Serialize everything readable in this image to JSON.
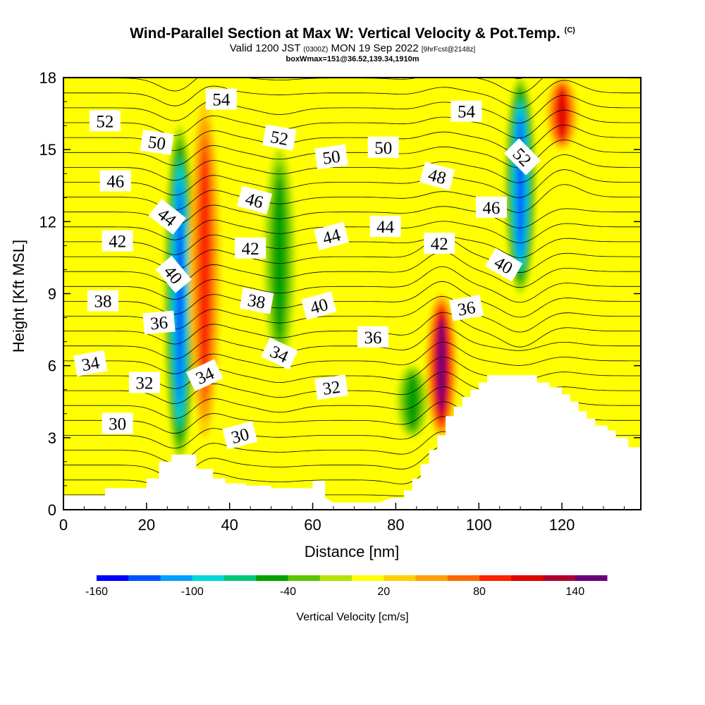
{
  "header": {
    "title": "Wind-Parallel Section at Max W: Vertical Velocity & Pot.Temp.",
    "copyright": "(C)",
    "valid_main": "Valid 1200 JST",
    "valid_utc": "(0300Z)",
    "valid_date": "MON 19 Sep 2022",
    "forecast": "[9hrFcst@2148z]",
    "box_info": "boxWmax=151@36.52,139.34,1910m"
  },
  "chart_data": {
    "type": "heatmap",
    "xlabel": "Distance [nm]",
    "ylabel": "Height [Kft MSL]",
    "xlim": [
      0,
      139
    ],
    "ylim": [
      0,
      18
    ],
    "x_ticks": [
      0,
      20,
      40,
      60,
      80,
      100,
      120
    ],
    "y_ticks": [
      0,
      3,
      6,
      9,
      12,
      15,
      18
    ],
    "colorbar": {
      "title": "Vertical Velocity [cm/s]",
      "tick_labels": [
        "-160",
        "-100",
        "-40",
        "20",
        "80",
        "140"
      ],
      "levels": [
        -160,
        -140,
        -120,
        -100,
        -80,
        -60,
        -40,
        -20,
        0,
        20,
        40,
        60,
        80,
        100,
        120,
        140,
        160
      ],
      "colors": [
        "#0000ff",
        "#0050ff",
        "#00a0ff",
        "#00d8d8",
        "#00c878",
        "#00a000",
        "#5cc400",
        "#b4e400",
        "#ffff00",
        "#ffd000",
        "#ffa000",
        "#ff6800",
        "#ff2000",
        "#e00000",
        "#b00030",
        "#6a007a"
      ]
    },
    "vertical_velocity_features": [
      {
        "x": 28,
        "zmin": 2,
        "zmax": 16,
        "w": -120,
        "kind": "downdraft"
      },
      {
        "x": 34,
        "zmin": 3,
        "zmax": 17,
        "w": 80,
        "kind": "updraft"
      },
      {
        "x": 52,
        "zmin": 6,
        "zmax": 15,
        "w": -50,
        "kind": "downdraft"
      },
      {
        "x": 91,
        "zmin": 3,
        "zmax": 9,
        "w": 151,
        "kind": "updraft"
      },
      {
        "x": 84,
        "zmin": 3,
        "zmax": 6,
        "w": -50,
        "kind": "downdraft"
      },
      {
        "x": 110,
        "zmin": 9,
        "zmax": 18,
        "w": -120,
        "kind": "downdraft"
      },
      {
        "x": 120,
        "zmin": 15,
        "zmax": 18,
        "w": 100,
        "kind": "updraft"
      }
    ],
    "theta_contour_labels": [
      {
        "text": "52",
        "x": 10,
        "z": 16.2,
        "angle": 0
      },
      {
        "text": "50",
        "x": 22.5,
        "z": 15.3,
        "angle": 8
      },
      {
        "text": "46",
        "x": 12.5,
        "z": 13.7,
        "angle": 0
      },
      {
        "text": "44",
        "x": 25,
        "z": 12.2,
        "angle": 38
      },
      {
        "text": "42",
        "x": 13,
        "z": 11.2,
        "angle": 0
      },
      {
        "text": "40",
        "x": 26.5,
        "z": 9.8,
        "angle": 50
      },
      {
        "text": "38",
        "x": 9.5,
        "z": 8.7,
        "angle": 0
      },
      {
        "text": "36",
        "x": 23,
        "z": 7.8,
        "angle": -5
      },
      {
        "text": "34",
        "x": 6.5,
        "z": 6.1,
        "angle": -10
      },
      {
        "text": "32",
        "x": 19.5,
        "z": 5.3,
        "angle": 0
      },
      {
        "text": "30",
        "x": 13,
        "z": 3.6,
        "angle": 0
      },
      {
        "text": "54",
        "x": 38,
        "z": 17.1,
        "angle": 0
      },
      {
        "text": "52",
        "x": 52,
        "z": 15.5,
        "angle": 10
      },
      {
        "text": "46",
        "x": 46,
        "z": 12.9,
        "angle": 15
      },
      {
        "text": "42",
        "x": 45,
        "z": 10.9,
        "angle": 0
      },
      {
        "text": "38",
        "x": 46.5,
        "z": 8.7,
        "angle": 10
      },
      {
        "text": "34",
        "x": 52,
        "z": 6.5,
        "angle": 25
      },
      {
        "text": "34",
        "x": 34,
        "z": 5.6,
        "angle": -25
      },
      {
        "text": "30",
        "x": 42.5,
        "z": 3.1,
        "angle": -15
      },
      {
        "text": "50",
        "x": 64.5,
        "z": 14.7,
        "angle": -8
      },
      {
        "text": "50",
        "x": 77,
        "z": 15.1,
        "angle": 0
      },
      {
        "text": "44",
        "x": 64.5,
        "z": 11.4,
        "angle": -15
      },
      {
        "text": "44",
        "x": 77.5,
        "z": 11.8,
        "angle": 0
      },
      {
        "text": "40",
        "x": 61.5,
        "z": 8.5,
        "angle": -15
      },
      {
        "text": "36",
        "x": 74.5,
        "z": 7.2,
        "angle": 0
      },
      {
        "text": "32",
        "x": 64.5,
        "z": 5.1,
        "angle": -8
      },
      {
        "text": "54",
        "x": 97,
        "z": 16.6,
        "angle": 0
      },
      {
        "text": "48",
        "x": 90,
        "z": 13.9,
        "angle": 15
      },
      {
        "text": "42",
        "x": 90.5,
        "z": 11.1,
        "angle": 0
      },
      {
        "text": "36",
        "x": 97,
        "z": 8.4,
        "angle": -10
      },
      {
        "text": "52",
        "x": 110.5,
        "z": 14.7,
        "angle": 45
      },
      {
        "text": "46",
        "x": 103,
        "z": 12.6,
        "angle": 0
      },
      {
        "text": "40",
        "x": 106,
        "z": 10.2,
        "angle": 30
      }
    ],
    "terrain": [
      [
        0,
        0.6
      ],
      [
        10,
        0.6
      ],
      [
        10,
        0.9
      ],
      [
        20,
        0.9
      ],
      [
        20,
        1.3
      ],
      [
        23,
        1.3
      ],
      [
        23,
        2
      ],
      [
        26,
        2
      ],
      [
        26,
        2.3
      ],
      [
        32,
        2.3
      ],
      [
        32,
        1.7
      ],
      [
        36,
        1.7
      ],
      [
        36,
        1.3
      ],
      [
        39,
        1.3
      ],
      [
        39,
        1.1
      ],
      [
        44,
        1.1
      ],
      [
        44,
        1
      ],
      [
        50,
        1
      ],
      [
        50,
        0.9
      ],
      [
        60,
        0.9
      ],
      [
        60,
        1.2
      ],
      [
        63,
        1.2
      ],
      [
        63,
        0.5
      ],
      [
        65,
        0.3
      ],
      [
        73,
        0.3
      ],
      [
        76,
        0.3
      ],
      [
        79,
        0.5
      ],
      [
        82,
        0.5
      ],
      [
        82,
        0.8
      ],
      [
        84,
        0.8
      ],
      [
        84,
        1.3
      ],
      [
        86,
        1.3
      ],
      [
        86,
        1.9
      ],
      [
        88,
        1.9
      ],
      [
        88,
        2.5
      ],
      [
        90,
        2.5
      ],
      [
        90,
        3.1
      ],
      [
        92,
        3.1
      ],
      [
        92,
        3.9
      ],
      [
        94,
        3.9
      ],
      [
        94,
        4.3
      ],
      [
        96,
        4.3
      ],
      [
        96,
        4.7
      ],
      [
        98,
        4.7
      ],
      [
        98,
        5
      ],
      [
        100,
        5
      ],
      [
        100,
        5.3
      ],
      [
        102,
        5.3
      ],
      [
        102,
        5.6
      ],
      [
        110,
        5.6
      ],
      [
        114,
        5.6
      ],
      [
        114,
        5.3
      ],
      [
        117,
        5.3
      ],
      [
        117,
        5.1
      ],
      [
        120,
        5.1
      ],
      [
        120,
        4.8
      ],
      [
        122,
        4.8
      ],
      [
        122,
        4.5
      ],
      [
        124,
        4.5
      ],
      [
        124,
        4.1
      ],
      [
        126,
        4.1
      ],
      [
        126,
        3.8
      ],
      [
        128,
        3.8
      ],
      [
        128,
        3.5
      ],
      [
        131,
        3.5
      ],
      [
        131,
        3.3
      ],
      [
        133,
        3.3
      ],
      [
        133,
        3
      ],
      [
        136,
        3
      ],
      [
        136,
        2.6
      ],
      [
        139,
        2.6
      ]
    ]
  }
}
